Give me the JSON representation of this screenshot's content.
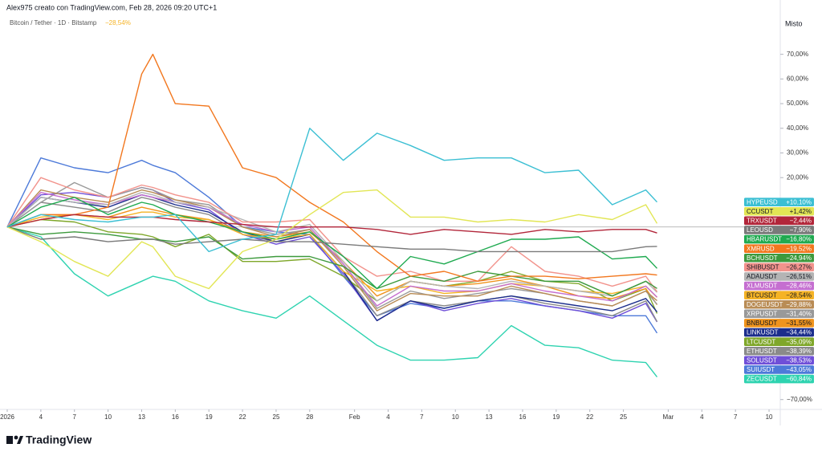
{
  "header": {
    "credit": "Alex975 creato con TradingView.com, Feb 28, 2026 09:20 UTC+1",
    "symbol": "Bitcoin / Tether · 1D · Bitstamp",
    "change": "−28,54%"
  },
  "footer": {
    "logo": "TradingView"
  },
  "chart_data": {
    "type": "line",
    "scale_mode": "Misto",
    "baseline": 0,
    "x": [
      "2026-01-01",
      "2026-01-04",
      "2026-01-07",
      "2026-01-10",
      "2026-01-13",
      "2026-01-14",
      "2026-01-16",
      "2026-01-19",
      "2026-01-22",
      "2026-01-25",
      "2026-01-28",
      "2026-01-31",
      "2026-02-03",
      "2026-02-06",
      "2026-02-09",
      "2026-02-12",
      "2026-02-15",
      "2026-02-18",
      "2026-02-21",
      "2026-02-24",
      "2026-02-27",
      "2026-02-28"
    ],
    "xlim": [
      "2026-01-01",
      "2026-03-11"
    ],
    "xticks": [
      {
        "value": "2026-01-01",
        "label": "2026"
      },
      {
        "value": "2026-01-04",
        "label": "4"
      },
      {
        "value": "2026-01-07",
        "label": "7"
      },
      {
        "value": "2026-01-10",
        "label": "10"
      },
      {
        "value": "2026-01-13",
        "label": "13"
      },
      {
        "value": "2026-01-16",
        "label": "16"
      },
      {
        "value": "2026-01-19",
        "label": "19"
      },
      {
        "value": "2026-01-22",
        "label": "22"
      },
      {
        "value": "2026-01-25",
        "label": "25"
      },
      {
        "value": "2026-01-28",
        "label": "28"
      },
      {
        "value": "2026-02-01",
        "label": "Feb"
      },
      {
        "value": "2026-02-04",
        "label": "4"
      },
      {
        "value": "2026-02-07",
        "label": "7"
      },
      {
        "value": "2026-02-10",
        "label": "10"
      },
      {
        "value": "2026-02-13",
        "label": "13"
      },
      {
        "value": "2026-02-16",
        "label": "16"
      },
      {
        "value": "2026-02-19",
        "label": "19"
      },
      {
        "value": "2026-02-22",
        "label": "22"
      },
      {
        "value": "2026-02-25",
        "label": "25"
      },
      {
        "value": "2026-03-01",
        "label": "Mar"
      },
      {
        "value": "2026-03-04",
        "label": "4"
      },
      {
        "value": "2026-03-07",
        "label": "7"
      },
      {
        "value": "2026-03-10",
        "label": "10"
      }
    ],
    "ylim": [
      -74,
      79
    ],
    "yticks": [
      {
        "value": 70,
        "label": "70,00%"
      },
      {
        "value": 60,
        "label": "60,00%"
      },
      {
        "value": 50,
        "label": "50,00%"
      },
      {
        "value": 40,
        "label": "40,00%"
      },
      {
        "value": 30,
        "label": "30,00%"
      },
      {
        "value": 20,
        "label": "20,00%"
      },
      {
        "value": -70,
        "label": "−70,00%"
      }
    ],
    "series": [
      {
        "name": "HYPEUSD",
        "color": "#3bbfd3",
        "values": [
          0,
          5,
          3,
          2,
          4,
          4,
          5,
          -10,
          -5,
          -3,
          40,
          27,
          38,
          33,
          27,
          28,
          28,
          22,
          23,
          9,
          15,
          10.1
        ],
        "value_labels": [
          null,
          null,
          null,
          null,
          null,
          null,
          null,
          null,
          null,
          null,
          null,
          null,
          null,
          null,
          null,
          null,
          null,
          null,
          null,
          null,
          null,
          "+10,10%"
        ]
      },
      {
        "name": "CCUSDT",
        "color": "#e2e655",
        "values": [
          0,
          -6,
          -14,
          -20,
          -6,
          -8,
          -20,
          -25,
          -10,
          -5,
          5,
          14,
          15,
          4,
          4,
          2,
          3,
          2,
          5,
          3,
          9,
          1.42
        ],
        "value_labels": [
          null,
          null,
          null,
          null,
          null,
          null,
          null,
          null,
          null,
          null,
          null,
          null,
          null,
          null,
          null,
          null,
          null,
          null,
          null,
          null,
          null,
          "+1,42%"
        ]
      },
      {
        "name": "TRXUSDT",
        "color": "#b2263a",
        "values": [
          0,
          3,
          5,
          4,
          4,
          4,
          3,
          2,
          1,
          0,
          0,
          0,
          -1,
          -3,
          -1,
          -2,
          -3,
          -1,
          -2,
          -1,
          -1,
          -2.44
        ],
        "value_labels": [
          null,
          null,
          null,
          null,
          null,
          null,
          null,
          null,
          null,
          null,
          null,
          null,
          null,
          null,
          null,
          null,
          null,
          null,
          null,
          null,
          null,
          "−2,44%"
        ]
      },
      {
        "name": "LEOUSD",
        "color": "#7a7a7a",
        "values": [
          0,
          -5,
          -4,
          -6,
          -5,
          -5,
          -7,
          -6,
          -5,
          -6,
          -6,
          -7,
          -8,
          -9,
          -9,
          -10,
          -10,
          -10,
          -10,
          -10,
          -8,
          -7.9
        ],
        "value_labels": [
          null,
          null,
          null,
          null,
          null,
          null,
          null,
          null,
          null,
          null,
          null,
          null,
          null,
          null,
          null,
          null,
          null,
          null,
          null,
          null,
          null,
          "−7,90%"
        ]
      },
      {
        "name": "HBARUSDT",
        "color": "#1faa50",
        "values": [
          0,
          8,
          12,
          5,
          10,
          9,
          5,
          2,
          -2,
          -5,
          -2,
          -12,
          -25,
          -12,
          -15,
          -10,
          -5,
          -5,
          -4,
          -13,
          -12,
          -16.8
        ],
        "value_labels": [
          null,
          null,
          null,
          null,
          null,
          null,
          null,
          null,
          null,
          null,
          null,
          null,
          null,
          null,
          null,
          null,
          null,
          null,
          null,
          null,
          null,
          "−16,80%"
        ]
      },
      {
        "name": "XMRUSD",
        "color": "#f2771e",
        "values": [
          0,
          5,
          5,
          8,
          62,
          70,
          50,
          49,
          24,
          20,
          10,
          2,
          -10,
          -20,
          -18,
          -22,
          -20,
          -20,
          -21,
          -20,
          -19,
          -19.52
        ],
        "value_labels": [
          null,
          null,
          null,
          null,
          null,
          null,
          null,
          null,
          null,
          null,
          null,
          null,
          null,
          null,
          null,
          null,
          null,
          null,
          null,
          null,
          null,
          "−19,52%"
        ]
      },
      {
        "name": "BCHUSDT",
        "color": "#3d9a3d",
        "values": [
          0,
          -3,
          -2,
          -3,
          -5,
          -5,
          -6,
          -4,
          -13,
          -12,
          -12,
          -16,
          -25,
          -20,
          -22,
          -18,
          -20,
          -22,
          -22,
          -28,
          -22,
          -24.94
        ],
        "value_labels": [
          null,
          null,
          null,
          null,
          null,
          null,
          null,
          null,
          null,
          null,
          null,
          null,
          null,
          null,
          null,
          null,
          null,
          null,
          null,
          null,
          null,
          "−24,94%"
        ]
      },
      {
        "name": "SHIBUSDT",
        "color": "#f2938c",
        "values": [
          0,
          20,
          15,
          12,
          17,
          16,
          13,
          10,
          2,
          2,
          3,
          -12,
          -20,
          -18,
          -22,
          -22,
          -8,
          -18,
          -20,
          -24,
          -20,
          -26.27
        ],
        "value_labels": [
          null,
          null,
          null,
          null,
          null,
          null,
          null,
          null,
          null,
          null,
          null,
          null,
          null,
          null,
          null,
          null,
          null,
          null,
          null,
          null,
          null,
          "−26,27%"
        ]
      },
      {
        "name": "ADAUSDT",
        "color": "#b4b4b4",
        "values": [
          0,
          12,
          10,
          9,
          14,
          13,
          10,
          8,
          3,
          -2,
          1,
          -14,
          -30,
          -22,
          -24,
          -25,
          -22,
          -24,
          -26,
          -28,
          -22,
          -26.51
        ],
        "value_labels": [
          null,
          null,
          null,
          null,
          null,
          null,
          null,
          null,
          null,
          null,
          null,
          null,
          null,
          null,
          null,
          null,
          null,
          null,
          null,
          null,
          null,
          "−26,51%"
        ]
      },
      {
        "name": "XLMUSDT",
        "color": "#c56fd0",
        "values": [
          0,
          14,
          11,
          9,
          13,
          12,
          10,
          8,
          1,
          -2,
          0,
          -15,
          -32,
          -24,
          -26,
          -26,
          -23,
          -26,
          -28,
          -30,
          -24,
          -28.46
        ],
        "value_labels": [
          null,
          null,
          null,
          null,
          null,
          null,
          null,
          null,
          null,
          null,
          null,
          null,
          null,
          null,
          null,
          null,
          null,
          null,
          null,
          null,
          null,
          "−28,46%"
        ]
      },
      {
        "name": "BTCUSDT",
        "color": "#f5b325",
        "values": [
          0,
          4,
          5,
          3,
          6,
          6,
          4,
          3,
          -3,
          -5,
          -3,
          -18,
          -26,
          -24,
          -27,
          -26,
          -23,
          -24,
          -26,
          -27,
          -24,
          -28.54
        ],
        "value_labels": [
          null,
          null,
          null,
          null,
          null,
          null,
          null,
          null,
          null,
          null,
          null,
          null,
          null,
          null,
          null,
          null,
          null,
          null,
          null,
          null,
          null,
          "−28,54%"
        ]
      },
      {
        "name": "DOGEUSDT",
        "color": "#b98c55",
        "values": [
          0,
          15,
          12,
          10,
          15,
          14,
          11,
          8,
          0,
          -4,
          -1,
          -16,
          -34,
          -27,
          -28,
          -28,
          -24,
          -27,
          -30,
          -32,
          -26,
          -29.88
        ],
        "value_labels": [
          null,
          null,
          null,
          null,
          null,
          null,
          null,
          null,
          null,
          null,
          null,
          null,
          null,
          null,
          null,
          null,
          null,
          null,
          null,
          null,
          null,
          "−29,88%"
        ]
      },
      {
        "name": "XRPUSDT",
        "color": "#999999",
        "values": [
          0,
          10,
          18,
          12,
          16,
          15,
          11,
          9,
          0,
          -3,
          -1,
          -15,
          -33,
          -26,
          -29,
          -27,
          -25,
          -27,
          -30,
          -32,
          -26,
          -31.4
        ],
        "value_labels": [
          null,
          null,
          null,
          null,
          null,
          null,
          null,
          null,
          null,
          null,
          null,
          null,
          null,
          null,
          null,
          null,
          null,
          null,
          null,
          null,
          null,
          "−31,40%"
        ]
      },
      {
        "name": "BNBUSDT",
        "color": "#f0941d",
        "values": [
          0,
          3,
          5,
          4,
          8,
          7,
          5,
          3,
          -2,
          -4,
          -2,
          -14,
          -28,
          -22,
          -24,
          -23,
          -21,
          -24,
          -28,
          -29,
          -25,
          -31.55
        ],
        "value_labels": [
          null,
          null,
          null,
          null,
          null,
          null,
          null,
          null,
          null,
          null,
          null,
          null,
          null,
          null,
          null,
          null,
          null,
          null,
          null,
          null,
          null,
          "−31,55%"
        ]
      },
      {
        "name": "LINKUSDT",
        "color": "#1c2e8c",
        "values": [
          0,
          12,
          10,
          8,
          13,
          12,
          9,
          6,
          -2,
          -6,
          -3,
          -18,
          -38,
          -30,
          -33,
          -30,
          -28,
          -30,
          -32,
          -34,
          -29,
          -34.44
        ],
        "value_labels": [
          null,
          null,
          null,
          null,
          null,
          null,
          null,
          null,
          null,
          null,
          null,
          null,
          null,
          null,
          null,
          null,
          null,
          null,
          null,
          null,
          null,
          "−34,44%"
        ]
      },
      {
        "name": "LTCUSDT",
        "color": "#7fa72a",
        "values": [
          0,
          3,
          2,
          -2,
          -3,
          -4,
          -8,
          -3,
          -14,
          -14,
          -13,
          -20,
          -30,
          -22,
          -24,
          -22,
          -18,
          -22,
          -23,
          -30,
          -25,
          -35.09
        ],
        "value_labels": [
          null,
          null,
          null,
          null,
          null,
          null,
          null,
          null,
          null,
          null,
          null,
          null,
          null,
          null,
          null,
          null,
          null,
          null,
          null,
          null,
          null,
          "−35,09%"
        ]
      },
      {
        "name": "ETHUSDT",
        "color": "#8a8a8a",
        "values": [
          0,
          10,
          8,
          6,
          12,
          11,
          8,
          5,
          -3,
          -6,
          -3,
          -18,
          -36,
          -30,
          -32,
          -30,
          -28,
          -31,
          -33,
          -36,
          -30,
          -38.39
        ],
        "value_labels": [
          null,
          null,
          null,
          null,
          null,
          null,
          null,
          null,
          null,
          null,
          null,
          null,
          null,
          null,
          null,
          null,
          null,
          null,
          null,
          null,
          null,
          "−38,39%"
        ]
      },
      {
        "name": "SOLUSDT",
        "color": "#6f4fd8",
        "values": [
          0,
          13,
          14,
          12,
          16,
          15,
          10,
          7,
          -3,
          -7,
          -4,
          -19,
          -38,
          -30,
          -34,
          -31,
          -29,
          -32,
          -34,
          -37,
          -31,
          -38.53
        ],
        "value_labels": [
          null,
          null,
          null,
          null,
          null,
          null,
          null,
          null,
          null,
          null,
          null,
          null,
          null,
          null,
          null,
          null,
          null,
          null,
          null,
          null,
          null,
          "−38,53%"
        ]
      },
      {
        "name": "SUIUSDT",
        "color": "#4d7ad9",
        "values": [
          0,
          28,
          24,
          22,
          27,
          25,
          22,
          12,
          0,
          -2,
          -3,
          -20,
          -36,
          -31,
          -33,
          -30,
          -30,
          -32,
          -34,
          -36,
          -36,
          -43.05
        ],
        "value_labels": [
          null,
          null,
          null,
          null,
          null,
          null,
          null,
          null,
          null,
          null,
          null,
          null,
          null,
          null,
          null,
          null,
          null,
          null,
          null,
          null,
          null,
          "−43,05%"
        ]
      },
      {
        "name": "ZECUSDT",
        "color": "#2ed3b0",
        "values": [
          0,
          -4,
          -19,
          -28,
          -22,
          -20,
          -22,
          -30,
          -34,
          -37,
          -28,
          -38,
          -48,
          -54,
          -54,
          -53,
          -40,
          -48,
          -49,
          -54,
          -55,
          -60.84
        ],
        "value_labels": [
          null,
          null,
          null,
          null,
          null,
          null,
          null,
          null,
          null,
          null,
          null,
          null,
          null,
          null,
          null,
          null,
          null,
          null,
          null,
          null,
          null,
          "−60,84%"
        ]
      }
    ]
  }
}
